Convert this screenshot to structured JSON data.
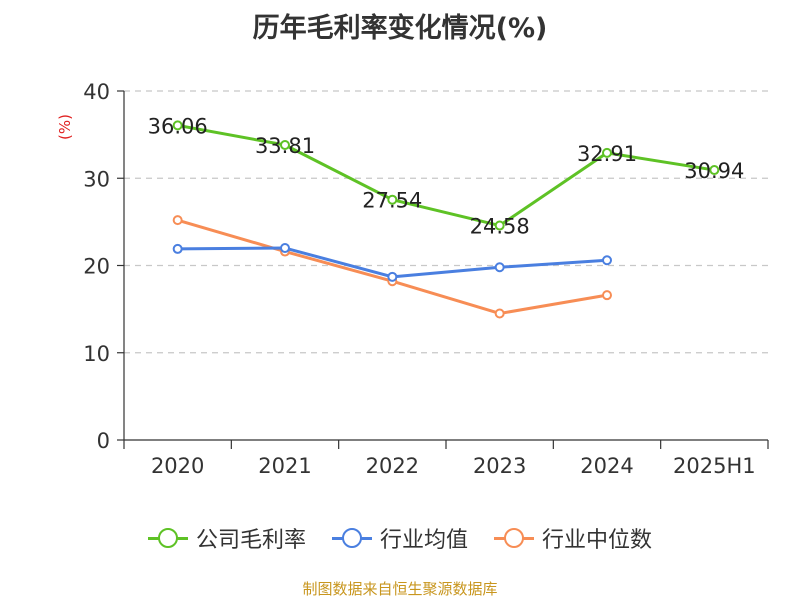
{
  "chart_data": {
    "type": "line",
    "title": "历年毛利率变化情况(%)",
    "ylabel": "(%)",
    "xlabel": "",
    "categories": [
      "2020",
      "2021",
      "2022",
      "2023",
      "2024",
      "2025H1"
    ],
    "ylim": [
      0,
      40
    ],
    "yticks": [
      0,
      10,
      20,
      30,
      40
    ],
    "grid": true,
    "legend_position": "bottom",
    "series": [
      {
        "name": "公司毛利率",
        "color": "#5ec225",
        "values": [
          36.06,
          33.81,
          27.54,
          24.58,
          32.91,
          30.94
        ],
        "labels": [
          "36.06",
          "33.81",
          "27.54",
          "24.58",
          "32.91",
          "30.94"
        ]
      },
      {
        "name": "行业均值",
        "color": "#4a7fe0",
        "values": [
          21.9,
          22.0,
          18.7,
          19.8,
          20.6,
          null
        ]
      },
      {
        "name": "行业中位数",
        "color": "#f78d55",
        "values": [
          25.2,
          21.6,
          18.2,
          14.5,
          16.6,
          null
        ]
      }
    ],
    "source": "制图数据来自恒生聚源数据库"
  }
}
